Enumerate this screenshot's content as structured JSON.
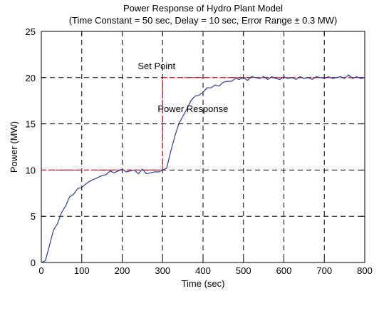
{
  "chart_data": {
    "type": "line",
    "title": "Power Response of Hydro Plant Model",
    "subtitle": "(Time Constant = 50 sec, Delay = 10 sec, Error Range ± 0.3 MW)",
    "xlabel": "Time (sec)",
    "ylabel": "Power (MW)",
    "xlim": [
      0,
      800
    ],
    "ylim": [
      0,
      25
    ],
    "xticks": [
      0,
      100,
      200,
      300,
      400,
      500,
      600,
      700,
      800
    ],
    "yticks": [
      0,
      5,
      10,
      15,
      20,
      25
    ],
    "xtick_labels": [
      "0",
      "100",
      "200",
      "300",
      "400",
      "500",
      "600",
      "700",
      "800"
    ],
    "ytick_labels": [
      "0",
      "5",
      "10",
      "15",
      "20",
      "25"
    ],
    "grid": true,
    "grid_style": "dashed",
    "annotations": [
      {
        "text": "Set Point",
        "x": 285,
        "y": 20.9
      },
      {
        "text": "Power Response",
        "x": 375,
        "y": 16.3
      }
    ],
    "series": [
      {
        "color": "#e8102a",
        "line_style": "dashed",
        "x": [
          0,
          300,
          300,
          800
        ],
        "y": [
          10,
          10,
          20,
          20
        ]
      },
      {
        "color": "#2c3e8c",
        "line_style": "solid",
        "x": [
          0,
          10,
          20,
          30,
          40,
          50,
          60,
          70,
          80,
          90,
          100,
          110,
          120,
          130,
          140,
          150,
          160,
          170,
          180,
          190,
          200,
          210,
          220,
          230,
          240,
          250,
          260,
          270,
          280,
          290,
          300,
          310,
          320,
          330,
          340,
          350,
          360,
          370,
          380,
          390,
          400,
          410,
          420,
          430,
          440,
          450,
          460,
          470,
          480,
          490,
          500,
          510,
          520,
          530,
          540,
          550,
          560,
          570,
          580,
          590,
          600,
          610,
          620,
          630,
          640,
          650,
          660,
          670,
          680,
          690,
          700,
          710,
          720,
          730,
          740,
          750,
          760,
          770,
          780,
          790,
          800
        ],
        "y": [
          0,
          0.2,
          1.8,
          3.5,
          4.2,
          5.4,
          6.1,
          7.1,
          7.4,
          8.0,
          8.1,
          8.5,
          8.8,
          9.0,
          9.2,
          9.4,
          9.5,
          9.9,
          9.7,
          9.9,
          10.1,
          9.8,
          9.9,
          10.0,
          9.6,
          10.1,
          9.6,
          9.7,
          9.8,
          9.8,
          10.0,
          10.2,
          12.0,
          13.6,
          15.0,
          15.8,
          16.6,
          17.5,
          18.0,
          18.1,
          18.4,
          18.9,
          18.9,
          19.2,
          19.1,
          19.5,
          19.6,
          19.6,
          19.9,
          19.8,
          20.0,
          19.7,
          20.1,
          20.0,
          19.9,
          20.1,
          19.8,
          20.1,
          19.9,
          19.8,
          20.1,
          19.9,
          20.0,
          19.8,
          20.1,
          19.9,
          20.0,
          19.8,
          20.1,
          20.0,
          19.9,
          20.1,
          19.9,
          20.0,
          20.1,
          19.9,
          20.3,
          19.9,
          20.1,
          19.9,
          20.0
        ]
      }
    ]
  }
}
